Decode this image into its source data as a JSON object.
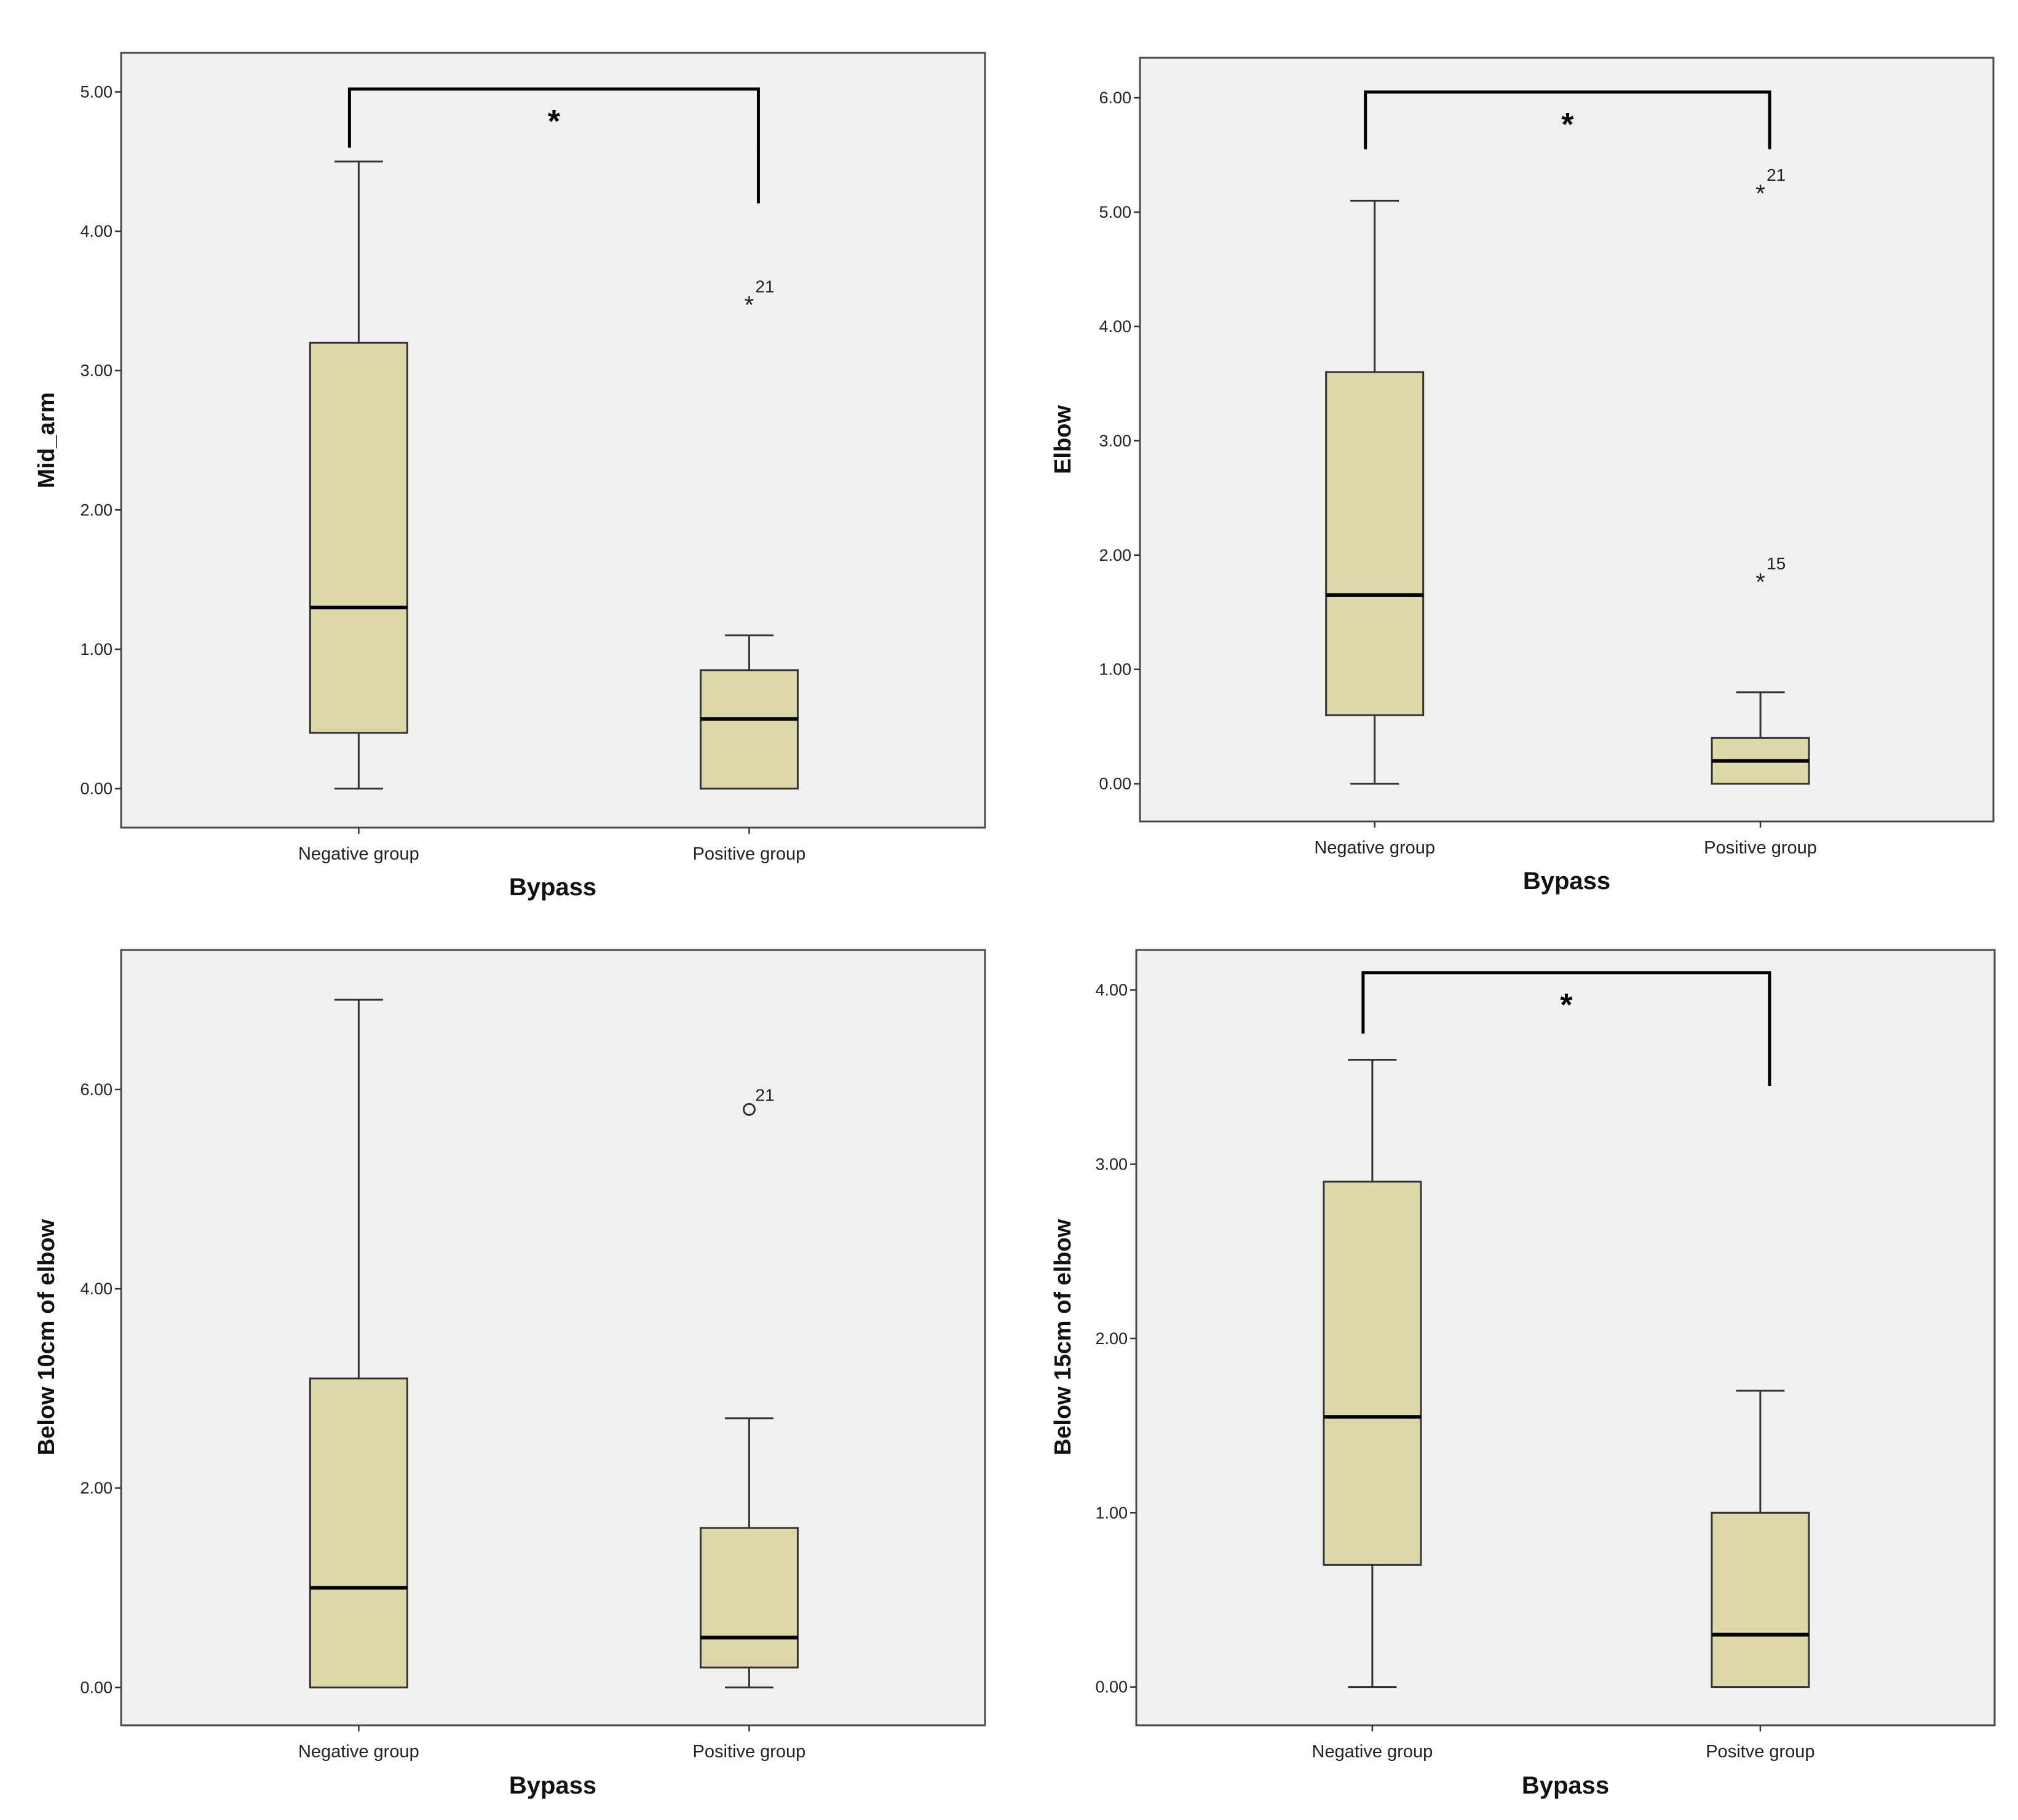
{
  "chart_data": [
    {
      "type": "box",
      "title": "",
      "xlabel": "Bypass",
      "ylabel": "Mid_arm",
      "ylim": [
        -0.28,
        5.28
      ],
      "yticks": [
        "0.00",
        "1.00",
        "2.00",
        "3.00",
        "4.00",
        "5.00"
      ],
      "categories": [
        "Negative group",
        "Positive group"
      ],
      "boxes": [
        {
          "min": 0.0,
          "q1": 0.4,
          "median": 1.3,
          "q3": 3.2,
          "max": 4.5,
          "outliers": []
        },
        {
          "min": 0.0,
          "q1": 0.0,
          "median": 0.5,
          "q3": 0.85,
          "max": 1.1,
          "outliers": [
            {
              "value": 3.5,
              "label": "21",
              "marker": "star"
            }
          ]
        }
      ],
      "significance": {
        "label": "*",
        "top": 5.02,
        "left_end": 4.6,
        "right_end": 4.2
      }
    },
    {
      "type": "box",
      "title": "",
      "xlabel": "Bypass",
      "ylabel": "Elbow",
      "ylim": [
        -0.33,
        6.35
      ],
      "yticks": [
        "0.00",
        "1.00",
        "2.00",
        "3.00",
        "4.00",
        "5.00",
        "6.00"
      ],
      "categories": [
        "Negative group",
        "Positive group"
      ],
      "boxes": [
        {
          "min": 0.0,
          "q1": 0.6,
          "median": 1.65,
          "q3": 3.6,
          "max": 5.1,
          "outliers": []
        },
        {
          "min": 0.0,
          "q1": 0.0,
          "median": 0.2,
          "q3": 0.4,
          "max": 0.8,
          "outliers": [
            {
              "value": 5.2,
              "label": "21",
              "marker": "star"
            },
            {
              "value": 1.8,
              "label": "15",
              "marker": "star"
            }
          ]
        }
      ],
      "significance": {
        "label": "*",
        "top": 6.05,
        "left_end": 5.55,
        "right_end": 5.55
      }
    },
    {
      "type": "box",
      "title": "",
      "xlabel": "Bypass",
      "ylabel": "Below 10cm of elbow",
      "ylim": [
        -0.38,
        7.4
      ],
      "yticks": [
        "0.00",
        "2.00",
        "4.00",
        "6.00"
      ],
      "categories": [
        "Negative group",
        "Positive group"
      ],
      "boxes": [
        {
          "min": 0.0,
          "q1": 0.0,
          "median": 1.0,
          "q3": 3.1,
          "max": 6.9,
          "outliers": []
        },
        {
          "min": 0.0,
          "q1": 0.2,
          "median": 0.5,
          "q3": 1.6,
          "max": 2.7,
          "outliers": [
            {
              "value": 5.8,
              "label": "21",
              "marker": "circle"
            }
          ]
        }
      ]
    },
    {
      "type": "box",
      "title": "",
      "xlabel": "Bypass",
      "ylabel": "Below 15cm of elbow",
      "ylim": [
        -0.22,
        4.23
      ],
      "yticks": [
        "0.00",
        "1.00",
        "2.00",
        "3.00",
        "4.00"
      ],
      "categories": [
        "Negative group",
        "Positve group"
      ],
      "boxes": [
        {
          "min": 0.0,
          "q1": 0.7,
          "median": 1.55,
          "q3": 2.9,
          "max": 3.6,
          "outliers": []
        },
        {
          "min": 0.0,
          "q1": 0.0,
          "median": 0.3,
          "q3": 1.0,
          "max": 1.7,
          "outliers": []
        }
      ],
      "significance": {
        "label": "*",
        "top": 4.1,
        "left_end": 3.75,
        "right_end": 3.45
      }
    }
  ]
}
